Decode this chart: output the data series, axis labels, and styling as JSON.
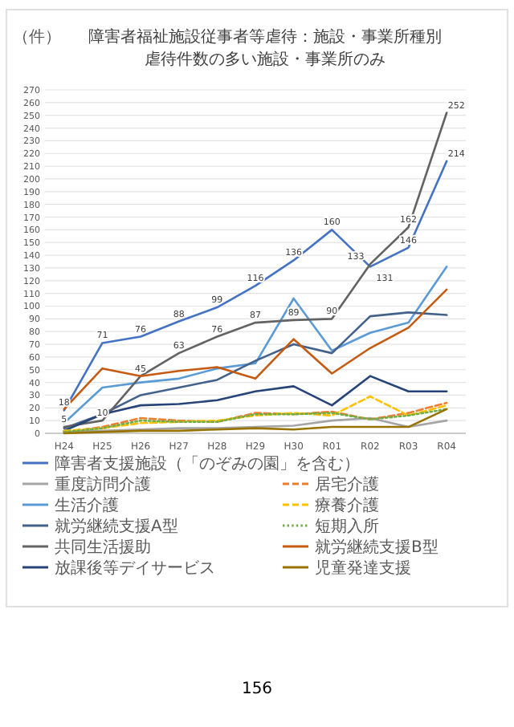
{
  "chart_data": {
    "type": "line",
    "title": "障害者福祉施設従事者等虐待：施設・事業所種別",
    "subtitle": "虐待件数の多い施設・事業所のみ",
    "ylabel": "（件）",
    "categories": [
      "H24",
      "H25",
      "H26",
      "H27",
      "H28",
      "H29",
      "H30",
      "R01",
      "R02",
      "R03",
      "R04"
    ],
    "ylim": [
      0,
      270
    ],
    "yticks": [
      0,
      10,
      20,
      30,
      40,
      50,
      60,
      70,
      80,
      90,
      100,
      110,
      120,
      130,
      140,
      150,
      160,
      170,
      180,
      190,
      200,
      210,
      220,
      230,
      240,
      250,
      260,
      270
    ],
    "grid": "y",
    "legend": "bottom",
    "marker": "none",
    "series": [
      {
        "name": "障害者支援施設（「のぞみの園」を含む）",
        "color": "#4472c4",
        "line_style": "solid",
        "data_labels": true,
        "values": [
          18,
          71,
          76,
          88,
          99,
          116,
          136,
          160,
          131,
          146,
          214
        ]
      },
      {
        "name": "重度訪問介護",
        "color": "#a5a5a5",
        "line_style": "solid",
        "values": [
          1,
          2,
          3,
          4,
          4,
          5,
          6,
          10,
          12,
          5,
          10
        ]
      },
      {
        "name": "生活介護",
        "color": "#5b9bd5",
        "line_style": "solid",
        "values": [
          8,
          36,
          40,
          43,
          51,
          55,
          106,
          65,
          79,
          87,
          131
        ]
      },
      {
        "name": "就労継続支援A型",
        "color": "#43628b",
        "line_style": "solid",
        "values": [
          4,
          15,
          30,
          36,
          42,
          57,
          70,
          63,
          92,
          95,
          93
        ]
      },
      {
        "name": "共同生活援助",
        "color": "#636363",
        "line_style": "solid",
        "data_labels": true,
        "values": [
          5,
          10,
          45,
          63,
          76,
          87,
          89,
          90,
          133,
          162,
          252
        ]
      },
      {
        "name": "放課後等デイサービス",
        "color": "#264478",
        "line_style": "solid",
        "values": [
          2,
          15,
          22,
          23,
          26,
          33,
          37,
          22,
          45,
          33,
          33
        ]
      },
      {
        "name": "居宅介護",
        "color": "#ed7d31",
        "line_style": "dashed",
        "values": [
          1,
          5,
          12,
          10,
          9,
          16,
          15,
          17,
          11,
          16,
          24
        ]
      },
      {
        "name": "療養介護",
        "color": "#ffc000",
        "line_style": "dashed",
        "values": [
          2,
          4,
          8,
          9,
          10,
          14,
          16,
          14,
          29,
          14,
          22
        ]
      },
      {
        "name": "短期入所",
        "color": "#70ad47",
        "line_style": "dotted",
        "values": [
          1,
          4,
          10,
          9,
          9,
          15,
          15,
          16,
          11,
          14,
          19
        ]
      },
      {
        "name": "就労継続支援B型",
        "color": "#c55a11",
        "line_style": "solid",
        "values": [
          19,
          51,
          45,
          49,
          52,
          43,
          74,
          47,
          67,
          83,
          113
        ]
      },
      {
        "name": "児童発達支援",
        "color": "#997300",
        "line_style": "solid",
        "values": [
          0,
          1,
          2,
          2,
          3,
          4,
          3,
          5,
          5,
          5,
          19
        ]
      }
    ],
    "annotations": [
      "156"
    ]
  }
}
